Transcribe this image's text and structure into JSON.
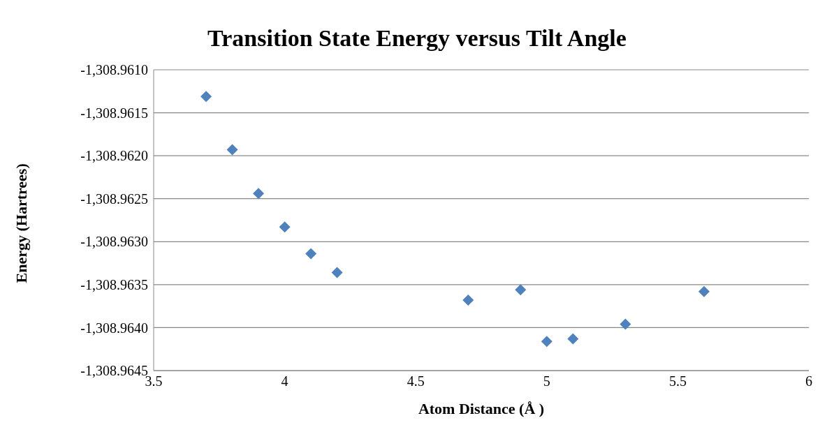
{
  "chart_data": {
    "type": "scatter",
    "title": "Transition State Energy versus Tilt Angle",
    "xlabel": "Atom Distance (Å )",
    "ylabel": "Energy (Hartrees)",
    "x": [
      3.7,
      3.8,
      3.9,
      4.0,
      4.1,
      4.2,
      4.7,
      4.9,
      5.0,
      5.1,
      5.3,
      5.6
    ],
    "series": [
      {
        "color": "#4f81bd",
        "values": [
          -1308.96131,
          -1308.96193,
          -1308.96244,
          -1308.96283,
          -1308.96314,
          -1308.96336,
          -1308.96368,
          -1308.96356,
          -1308.96416,
          -1308.96413,
          -1308.96396,
          -1308.96358
        ]
      }
    ],
    "xlim": [
      3.5,
      6
    ],
    "xticks": [
      3.5,
      4,
      4.5,
      5,
      5.5,
      6
    ],
    "ylim": [
      -1308.9645,
      -1308.961
    ],
    "yticks": [
      {
        "value": -1308.9645,
        "label": "-1,308.9645"
      },
      {
        "value": -1308.964,
        "label": "-1,308.9640"
      },
      {
        "value": -1308.9635,
        "label": "-1,308.9635"
      },
      {
        "value": -1308.963,
        "label": "-1,308.9630"
      },
      {
        "value": -1308.9625,
        "label": "-1,308.9625"
      },
      {
        "value": -1308.962,
        "label": "-1,308.9620"
      },
      {
        "value": -1308.9615,
        "label": "-1,308.9615"
      },
      {
        "value": -1308.961,
        "label": "-1,308.9610"
      }
    ],
    "grid": "y",
    "marker": "diamond",
    "legend": false
  }
}
